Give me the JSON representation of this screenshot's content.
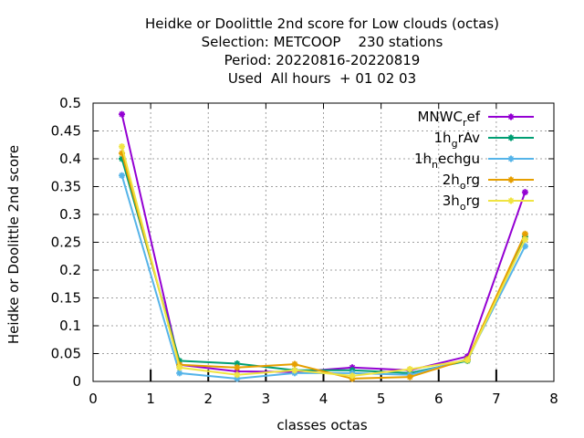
{
  "chart_data": {
    "type": "line",
    "title_lines": [
      "Heidke or Doolittle 2nd score  for Low clouds (octas)",
      "Selection: METCOOP    230 stations",
      "Period: 20220816-20220819",
      "Used  All hours  + 01 02 03"
    ],
    "xlabel": "classes octas",
    "ylabel": "Heidke or Doolittle 2nd score",
    "xlim": [
      0,
      8
    ],
    "ylim": [
      0,
      0.5
    ],
    "xticks": [
      "0",
      "1",
      "2",
      "3",
      "4",
      "5",
      "6",
      "7",
      "8"
    ],
    "yticks": [
      "0",
      "0.05",
      "0.1",
      "0.15",
      "0.2",
      "0.25",
      "0.3",
      "0.35",
      "0.4",
      "0.45",
      "0.5"
    ],
    "grid": true,
    "legend_position": "top-right",
    "x": [
      0.5,
      1.5,
      2.5,
      3.5,
      4.5,
      5.5,
      6.5,
      7.5
    ],
    "series": [
      {
        "name": "MNWC",
        "sub": "r",
        "suffix": "ef",
        "color": "#9400d3",
        "values": [
          0.48,
          0.03,
          0.018,
          0.017,
          0.025,
          0.02,
          0.045,
          0.34
        ]
      },
      {
        "name": "1h",
        "sub": "g",
        "suffix": "rAv",
        "color": "#009e73",
        "values": [
          0.4,
          0.037,
          0.032,
          0.02,
          0.02,
          0.015,
          0.037,
          0.26
        ]
      },
      {
        "name": "1h",
        "sub": "n",
        "suffix": "echgu",
        "color": "#56b4e9",
        "values": [
          0.37,
          0.015,
          0.005,
          0.015,
          0.015,
          0.012,
          0.04,
          0.243
        ]
      },
      {
        "name": "2h",
        "sub": "o",
        "suffix": "rg",
        "color": "#e69f00",
        "values": [
          0.41,
          0.03,
          0.025,
          0.031,
          0.005,
          0.008,
          0.04,
          0.265
        ]
      },
      {
        "name": "3h",
        "sub": "o",
        "suffix": "rg",
        "color": "#f0e442",
        "values": [
          0.422,
          0.025,
          0.012,
          0.02,
          0.01,
          0.022,
          0.038,
          0.255
        ]
      }
    ]
  }
}
